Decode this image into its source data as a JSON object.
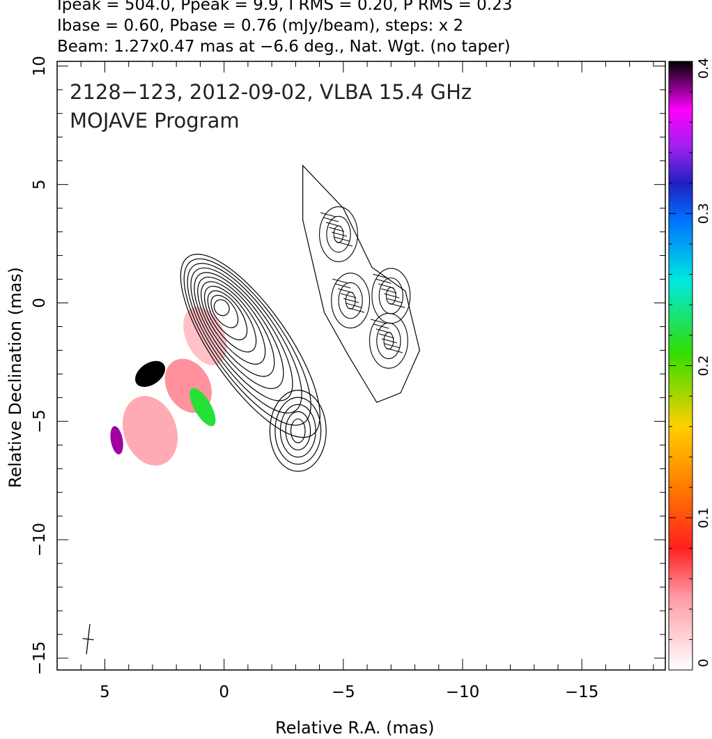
{
  "header": {
    "line1": "Ipeak = 504.0, Ppeak = 9.9, I RMS = 0.20, P RMS = 0.23",
    "line2": "Ibase = 0.60, Pbase = 0.76 (mJy/beam), steps: x 2",
    "line3": "Beam: 1.27x0.47 mas at −6.6 deg., Nat. Wgt. (no taper)"
  },
  "chart_data": {
    "type": "heatmap",
    "title": "2128−123, 2012-09-02, VLBA 15.4 GHz",
    "subtitle": "MOJAVE Program",
    "xlabel": "Relative R.A. (mas)",
    "ylabel": "Relative Declination (mas)",
    "xlim": [
      7,
      -18.5
    ],
    "ylim": [
      -15.5,
      10.2
    ],
    "xticks": [
      5,
      0,
      -5,
      -10,
      -15
    ],
    "xtick_labels": [
      "5",
      "0",
      "−5",
      "−10",
      "−15"
    ],
    "yticks": [
      10,
      5,
      0,
      -5,
      -10,
      -15
    ],
    "ytick_labels": [
      "10",
      "5",
      "0",
      "−5",
      "−10",
      "−15"
    ],
    "colorbar": {
      "range": [
        0,
        0.4
      ],
      "ticks": [
        0,
        0.1,
        0.2,
        0.3,
        0.4
      ],
      "tick_labels": [
        "0",
        "0.1",
        "0.2",
        "0.3",
        "0.4"
      ]
    },
    "total_intensity_contours": {
      "core_center": [
        0.1,
        -0.2
      ],
      "base_mJy_per_beam": 0.6,
      "step_factor": 2
    },
    "polarization_features": [
      {
        "x": 0.8,
        "y": -1.4,
        "value": 0.03
      },
      {
        "x": 1.5,
        "y": -3.5,
        "value": 0.05
      },
      {
        "x": 3.1,
        "y": -5.4,
        "value": 0.04
      },
      {
        "x": 3.1,
        "y": -3.0,
        "value": 0.4
      },
      {
        "x": 0.9,
        "y": -4.4,
        "value": 0.22
      },
      {
        "x": 4.5,
        "y": -5.8,
        "value": 0.38
      }
    ],
    "jet_regions": [
      {
        "x": -4.8,
        "y": 2.9
      },
      {
        "x": -5.3,
        "y": 0.1
      },
      {
        "x": -7.0,
        "y": 0.3
      },
      {
        "x": -6.9,
        "y": -1.6
      }
    ],
    "beam": {
      "major": 1.27,
      "minor": 0.47,
      "pa_deg": -6.6,
      "x": 5.7,
      "y": -14.2
    }
  }
}
